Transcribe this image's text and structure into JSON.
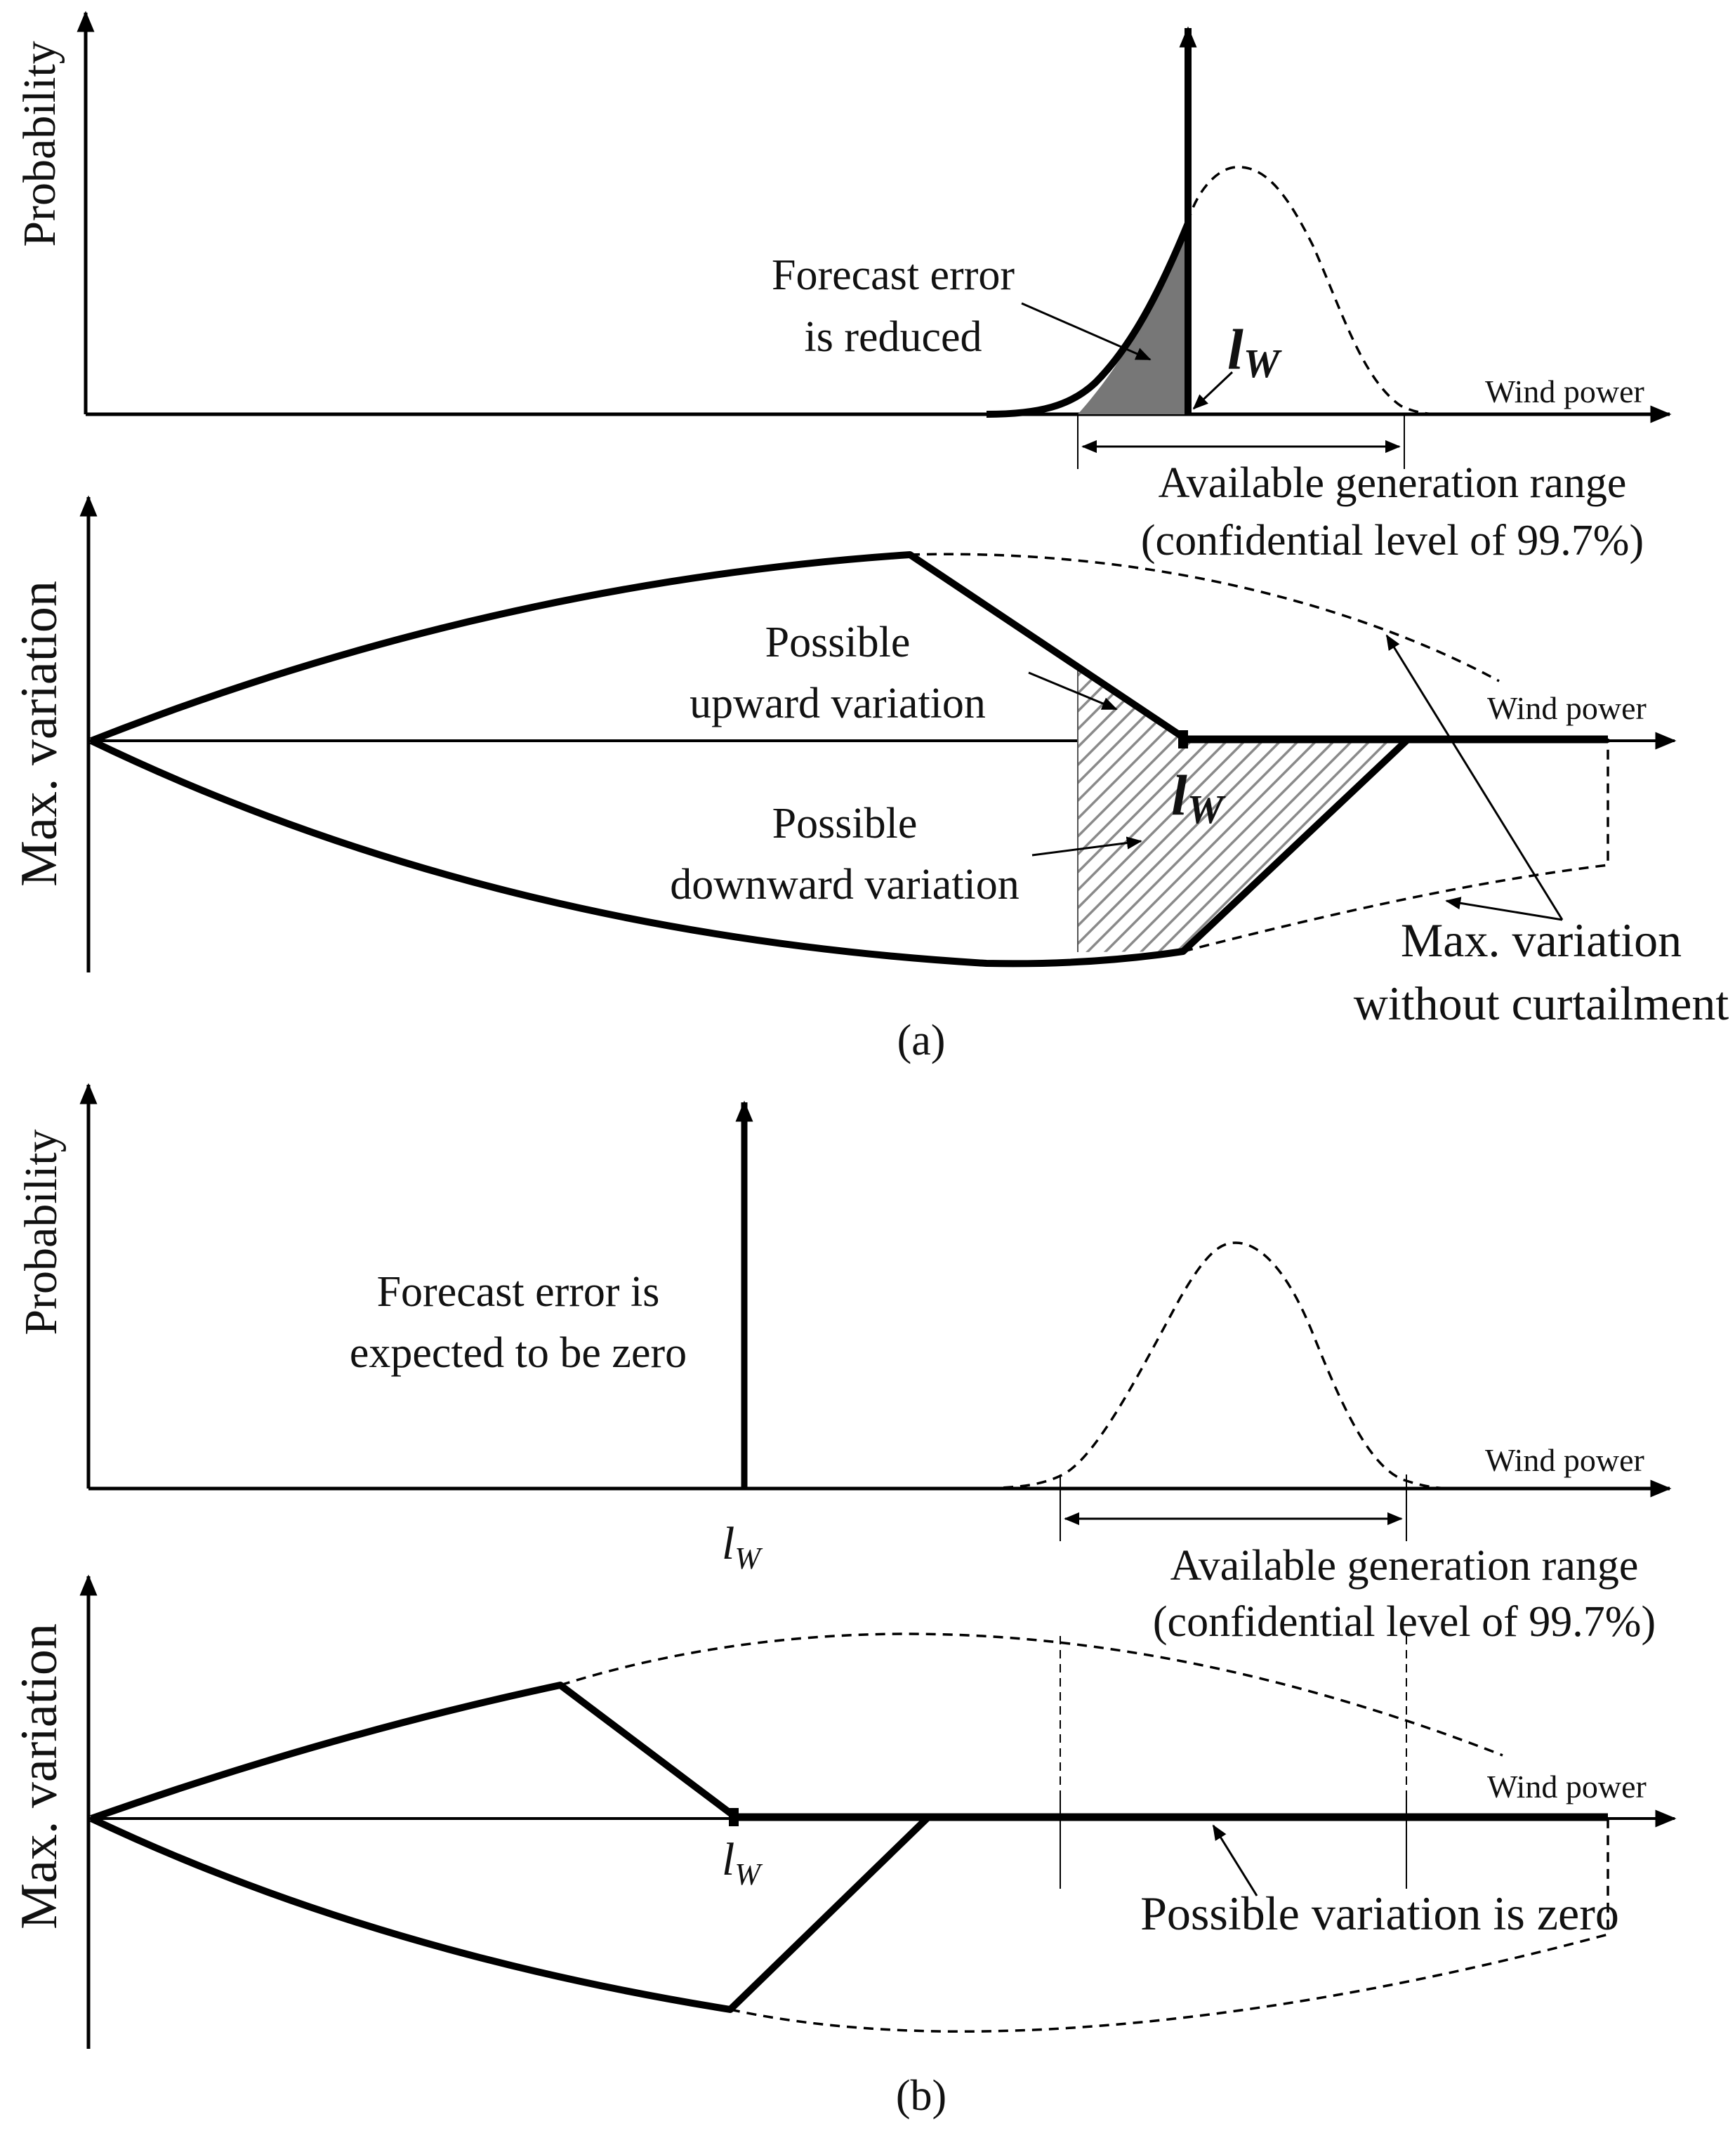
{
  "colors": {
    "ink": "#000000",
    "shade_dark": "#777777",
    "hatch": "#888888"
  },
  "panel_a": {
    "probability": {
      "ylabel": "Probability",
      "xlabel": "Wind power",
      "note_line1": "Forecast error",
      "note_line2": "is reduced",
      "cap_symbol": "l",
      "cap_subscript": "W",
      "range_line1": "Available generation range",
      "range_line2": "(confidential level of 99.7%)"
    },
    "variation": {
      "ylabel": "Max. variation",
      "xlabel": "Wind power",
      "up_line1": "Possible",
      "up_line2": "upward variation",
      "down_line1": "Possible",
      "down_line2": "downward variation",
      "cap_symbol": "l",
      "cap_subscript": "W",
      "nocurt_line1": "Max. variation",
      "nocurt_line2": "without curtailment"
    },
    "caption": "(a)"
  },
  "panel_b": {
    "probability": {
      "ylabel": "Probability",
      "xlabel": "Wind power",
      "note_line1": "Forecast error is",
      "note_line2": "expected to be zero",
      "cap_symbol": "l",
      "cap_subscript": "W",
      "range_line1": "Available generation range",
      "range_line2": "(confidential level of 99.7%)"
    },
    "variation": {
      "ylabel": "Max. variation",
      "xlabel": "Wind power",
      "cap_symbol": "l",
      "cap_subscript": "W",
      "zero_note": "Possible variation is zero"
    },
    "caption": "(b)"
  }
}
